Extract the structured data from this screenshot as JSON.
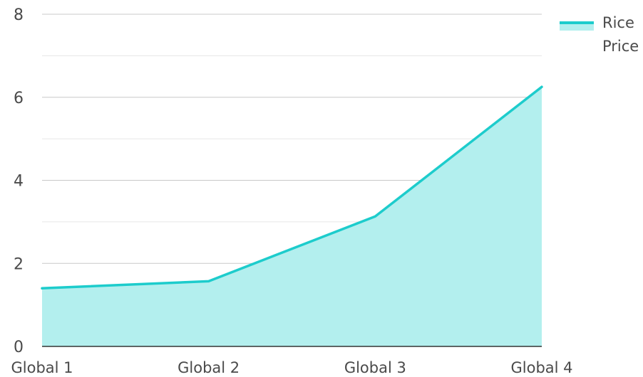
{
  "chart_data": {
    "type": "area",
    "categories": [
      "Global 1",
      "Global 2",
      "Global 3",
      "Global 4"
    ],
    "series": [
      {
        "name": "Rice Price",
        "values": [
          1.4,
          1.57,
          3.13,
          6.25
        ]
      }
    ],
    "y_ticks": [
      "0",
      "2",
      "4",
      "6",
      "8"
    ],
    "ylim": [
      0,
      8
    ],
    "grid": true,
    "legend": {
      "placement": "top-right",
      "label_lines": [
        "Rice",
        "Price"
      ]
    },
    "colors": {
      "line": "#1dcccc",
      "fill": "#b3efee",
      "major_grid": "#c8c8c8",
      "minor_grid": "#e6e6e6",
      "axis": "#333333",
      "text": "#4a4a4a"
    }
  }
}
